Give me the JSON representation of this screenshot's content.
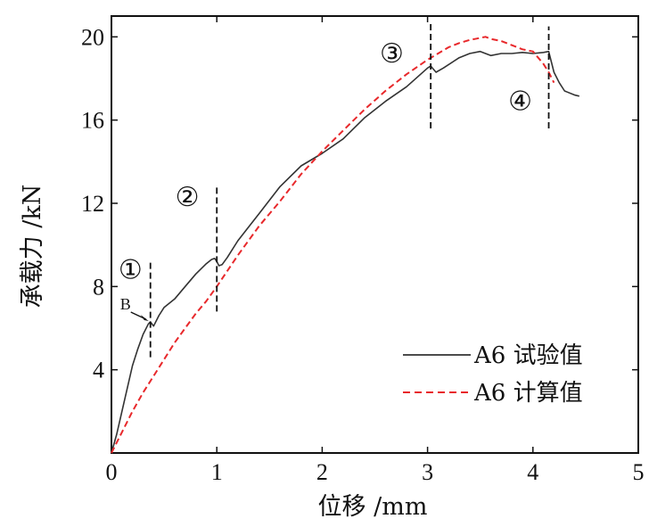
{
  "chart_data": {
    "type": "line",
    "xlabel": "位移 /mm",
    "ylabel": "承载力 /kN",
    "xlim": [
      0,
      5
    ],
    "ylim": [
      0,
      21
    ],
    "xticks": [
      "0",
      "1",
      "2",
      "3",
      "4",
      "5"
    ],
    "yticks": [
      "4",
      "8",
      "12",
      "16",
      "20"
    ],
    "legend_position": "bottom-right",
    "series": [
      {
        "name": "A6 试验值",
        "color": "#333333",
        "dash": "solid",
        "x": [
          0.0,
          0.05,
          0.1,
          0.15,
          0.2,
          0.25,
          0.3,
          0.35,
          0.37,
          0.4,
          0.45,
          0.5,
          0.6,
          0.7,
          0.8,
          0.9,
          0.95,
          0.98,
          1.0,
          1.02,
          1.05,
          1.1,
          1.2,
          1.4,
          1.6,
          1.8,
          2.0,
          2.2,
          2.4,
          2.6,
          2.8,
          3.0,
          3.03,
          3.08,
          3.15,
          3.3,
          3.4,
          3.5,
          3.6,
          3.7,
          3.8,
          3.9,
          4.0,
          4.1,
          4.15,
          4.2,
          4.25,
          4.3,
          4.4,
          4.44
        ],
        "y": [
          0.0,
          0.9,
          2.0,
          3.1,
          4.2,
          5.0,
          5.7,
          6.2,
          6.3,
          6.1,
          6.6,
          7.0,
          7.4,
          8.0,
          8.6,
          9.1,
          9.3,
          9.35,
          9.2,
          9.0,
          9.05,
          9.4,
          10.2,
          11.5,
          12.8,
          13.8,
          14.4,
          15.1,
          16.1,
          16.9,
          17.6,
          18.5,
          18.6,
          18.3,
          18.5,
          19.0,
          19.2,
          19.3,
          19.1,
          19.2,
          19.2,
          19.25,
          19.2,
          19.25,
          19.3,
          18.3,
          17.8,
          17.4,
          17.2,
          17.15
        ]
      },
      {
        "name": "A6 计算值",
        "color": "#e8282b",
        "dash": "dashed",
        "x": [
          0.0,
          0.1,
          0.2,
          0.3,
          0.4,
          0.5,
          0.6,
          0.7,
          0.8,
          0.9,
          1.0,
          1.2,
          1.4,
          1.6,
          1.8,
          2.0,
          2.2,
          2.4,
          2.6,
          2.8,
          3.0,
          3.1,
          3.2,
          3.3,
          3.4,
          3.45,
          3.5,
          3.55,
          3.6,
          3.7,
          3.8,
          3.9,
          4.0,
          4.05,
          4.1,
          4.15,
          4.2
        ],
        "y": [
          0.0,
          1.0,
          2.0,
          2.9,
          3.7,
          4.5,
          5.3,
          6.0,
          6.7,
          7.3,
          8.0,
          9.5,
          10.9,
          12.1,
          13.4,
          14.5,
          15.5,
          16.5,
          17.4,
          18.2,
          18.9,
          19.2,
          19.5,
          19.7,
          19.85,
          19.9,
          19.95,
          20.0,
          19.9,
          19.8,
          19.6,
          19.4,
          19.3,
          19.0,
          18.7,
          18.3,
          17.8
        ]
      }
    ],
    "markers": [
      {
        "label": "①",
        "x": 0.37,
        "y_range": [
          4.6,
          9.2
        ],
        "label_x": 0.18,
        "label_y": 8.8
      },
      {
        "label": "②",
        "x": 1.0,
        "y_range": [
          6.8,
          12.8
        ],
        "label_x": 0.72,
        "label_y": 12.3
      },
      {
        "label": "③",
        "x": 3.03,
        "y_range": [
          15.6,
          20.7
        ],
        "label_x": 2.66,
        "label_y": 19.2
      },
      {
        "label": "④",
        "x": 4.15,
        "y_range": [
          15.6,
          20.5
        ],
        "label_x": 3.88,
        "label_y": 16.9
      }
    ],
    "annotation": {
      "label": "B",
      "x": 0.37,
      "y": 6.3
    }
  }
}
